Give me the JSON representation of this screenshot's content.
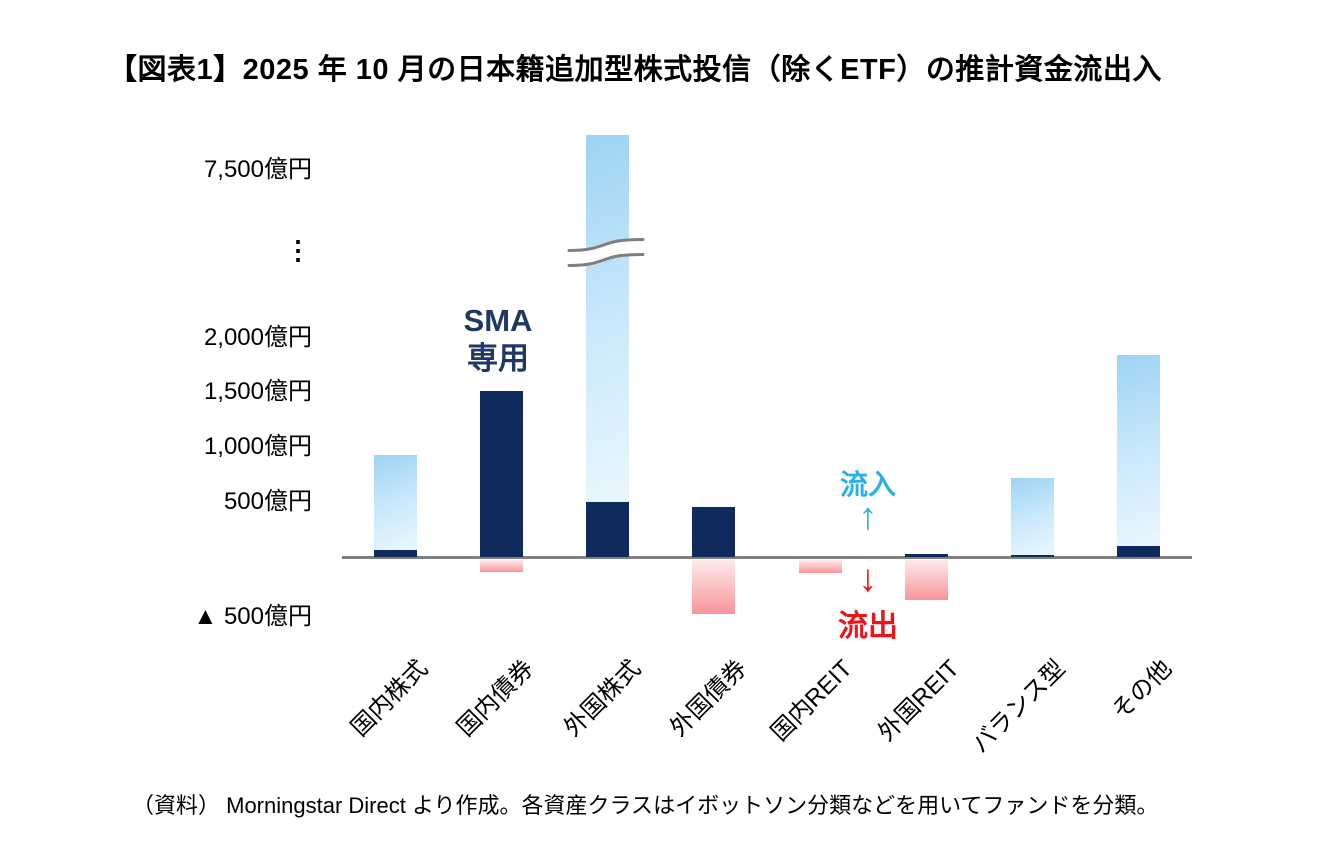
{
  "figure": {
    "title": "【図表1】2025 年 10 月の日本籍追加型株式投信（除くETF）の推計資金流出入",
    "source_note": "（資料） Morningstar Direct より作成。各資産クラスはイボットソン分類などを用いてファンドを分類。"
  },
  "y_axis": {
    "labels": [
      "7,500億円",
      "⋮",
      "2,000億円",
      "1,500億円",
      "1,000億円",
      "500億円",
      "▲ 500億円"
    ]
  },
  "annotations": {
    "sma_line1": "SMA",
    "sma_line2": "専用",
    "inflow_label": "流入",
    "inflow_arrow": "↑",
    "outflow_arrow": "↓",
    "outflow_label": "流出"
  },
  "colors": {
    "navy_bar": "#0f2b5e",
    "blue_bar_start": "#9dd3f4",
    "blue_bar_end": "#eaf7fe",
    "red_bar_start": "#fdebeb",
    "red_bar_end": "#f8959a",
    "sma_text": "#1f3864",
    "inflow_text": "#2bb0e8",
    "outflow_text": "#e8151a",
    "axis_line": "#808080"
  },
  "chart_data": {
    "type": "bar",
    "unit": "億円",
    "title": "2025年10月の日本籍追加型株式投信（除くETF）の推計資金流出入",
    "categories": [
      "国内株式",
      "国内債券",
      "外国株式",
      "外国債券",
      "国内REIT",
      "外国REIT",
      "バランス型",
      "その他"
    ],
    "series": [
      {
        "name": "SMA専用（紺）",
        "values": [
          60,
          1500,
          500,
          450,
          0,
          25,
          20,
          100
        ]
      },
      {
        "name": "流入（水色）",
        "values": [
          860,
          0,
          7500,
          0,
          0,
          0,
          690,
          1720
        ]
      },
      {
        "name": "流出（赤）",
        "values": [
          0,
          -110,
          0,
          -490,
          -120,
          -360,
          0,
          0
        ]
      }
    ],
    "axis_break": {
      "category_index": 2
    },
    "ylim": [
      -500,
      7500
    ],
    "grid": false,
    "legend": false
  }
}
